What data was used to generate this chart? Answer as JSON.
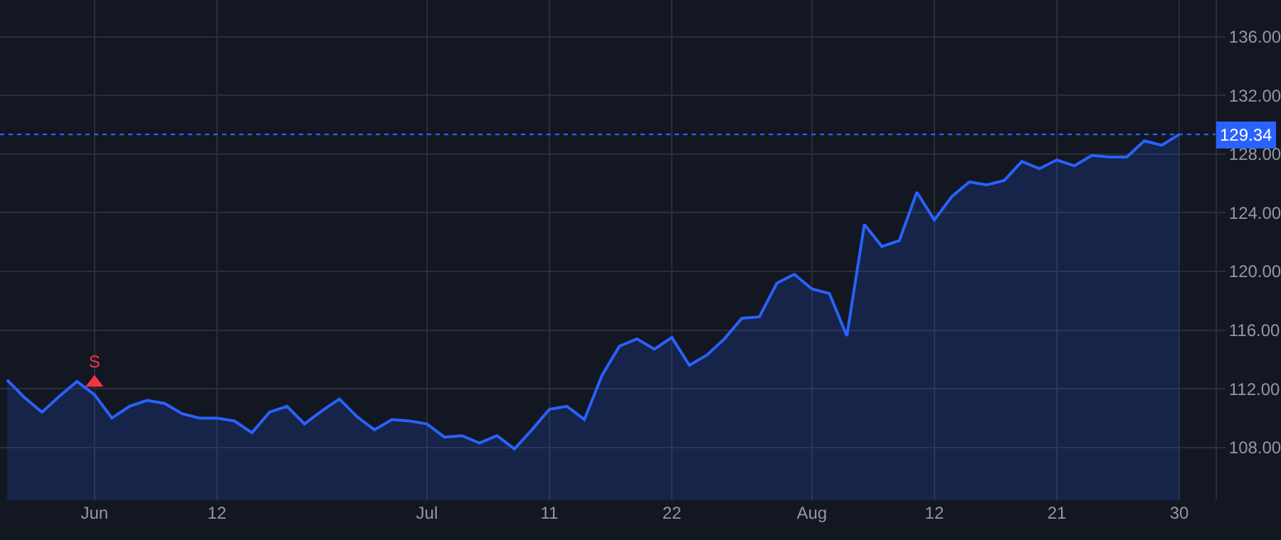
{
  "chart_data": {
    "type": "area",
    "categories": [
      null,
      null,
      null,
      null,
      null,
      "Jun",
      null,
      null,
      null,
      null,
      null,
      null,
      "12",
      null,
      null,
      null,
      null,
      null,
      null,
      null,
      null,
      null,
      null,
      null,
      "Jul",
      null,
      null,
      null,
      null,
      null,
      null,
      "11",
      null,
      null,
      null,
      null,
      null,
      null,
      "22",
      null,
      null,
      null,
      null,
      null,
      null,
      null,
      "Aug",
      null,
      null,
      null,
      null,
      null,
      null,
      "12",
      null,
      null,
      null,
      null,
      null,
      null,
      "21",
      null,
      null,
      null,
      null,
      null,
      null,
      "30"
    ],
    "series": [
      {
        "color": "#2962ff",
        "values": [
          112.6,
          111.4,
          110.4,
          111.5,
          112.5,
          111.6,
          110.0,
          110.8,
          111.2,
          111.0,
          110.3,
          110.0,
          110.0,
          109.8,
          109.0,
          110.4,
          110.8,
          109.6,
          110.5,
          111.3,
          110.1,
          109.2,
          109.9,
          109.8,
          109.6,
          108.7,
          108.8,
          108.3,
          108.8,
          107.9,
          109.2,
          110.6,
          110.8,
          109.9,
          112.9,
          114.9,
          115.4,
          114.7,
          115.5,
          113.6,
          114.3,
          115.4,
          116.8,
          116.9,
          119.2,
          119.8,
          118.8,
          118.5,
          115.6,
          123.2,
          121.7,
          122.1,
          125.4,
          123.5,
          125.1,
          126.1,
          125.9,
          126.2,
          127.5,
          127.0,
          127.6,
          127.2,
          127.9,
          127.8,
          127.8,
          128.9,
          128.6,
          129.34
        ]
      },
      {
        "type": "scatter",
        "name": "S",
        "color": "#f23645",
        "marker": "triangle",
        "values": [
          null,
          null,
          null,
          null,
          null,
          112.4,
          null,
          null,
          null,
          null,
          null,
          null,
          null,
          null,
          null,
          null,
          null,
          null,
          null,
          null,
          null,
          null,
          null,
          null,
          null,
          null,
          null,
          null,
          null,
          null,
          null,
          null,
          null,
          null,
          null,
          null,
          null,
          null,
          null,
          null,
          null,
          null,
          null,
          null,
          null,
          null,
          null,
          null,
          null,
          null,
          null,
          null,
          null,
          null,
          null,
          null,
          null,
          null,
          null,
          null,
          null,
          null,
          null,
          null,
          null,
          null,
          null,
          null
        ]
      }
    ],
    "ylim": [
      104.4,
      138.5
    ],
    "yticks": [
      {
        "value": 108,
        "label": "108.00"
      },
      {
        "value": 112,
        "label": "112.00"
      },
      {
        "value": 116,
        "label": "116.00"
      },
      {
        "value": 120,
        "label": "120.00"
      },
      {
        "value": 124,
        "label": "124.00"
      },
      {
        "value": 128,
        "label": "128.00"
      },
      {
        "value": 132,
        "label": "132.00"
      },
      {
        "value": 136,
        "label": "136.00"
      }
    ],
    "ref_lines": [
      {
        "axis": "y",
        "value": 129.34,
        "label": "129.34",
        "color": "#2962ff",
        "line_style": "dotted"
      }
    ],
    "grid": true,
    "legend": false,
    "marker": "none"
  }
}
